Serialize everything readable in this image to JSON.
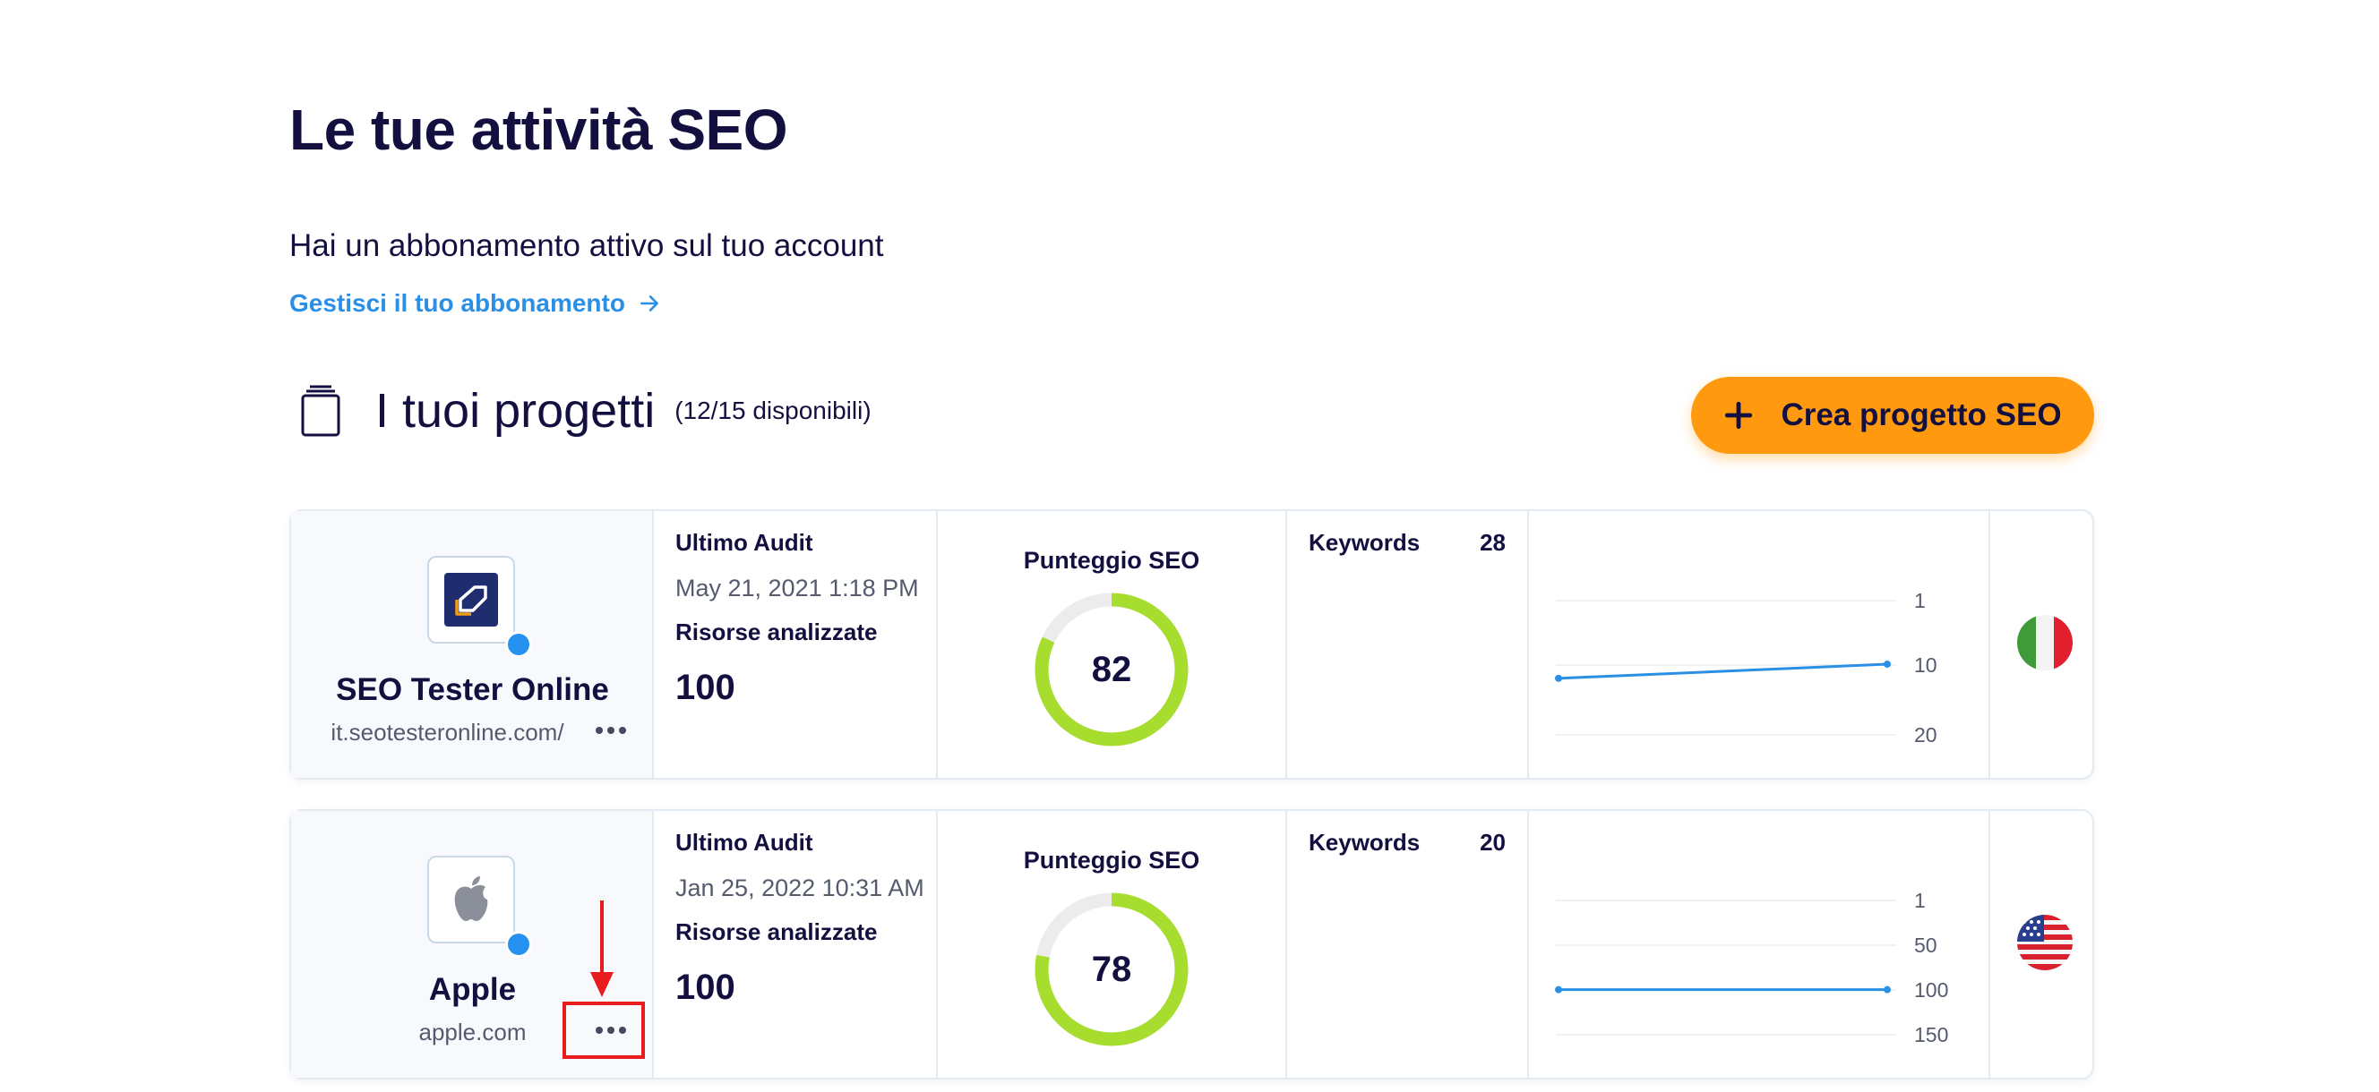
{
  "page": {
    "title": "Le tue attività SEO",
    "subscription_status": "Hai un abbonamento attivo sul tuo account",
    "manage_link": "Gestisci il tuo abbonamento"
  },
  "projects": {
    "title": "I tuoi progetti",
    "count": "(12/15 disponibili)",
    "create_button": "Crea progetto SEO"
  },
  "labels": {
    "last_audit": "Ultimo Audit",
    "resources": "Risorse analizzate",
    "seo_score": "Punteggio SEO",
    "keywords": "Keywords"
  },
  "cards": [
    {
      "name": "SEO Tester Online",
      "url": "it.seotesteronline.com/",
      "last_audit": "May 21, 2021 1:18 PM",
      "resources": "100",
      "score": "82",
      "score_fraction": 0.82,
      "keywords": "28",
      "country": "IT",
      "chart": {
        "type": "line",
        "y_ticks": [
          "1",
          "10",
          "20"
        ],
        "y_range": [
          1,
          20
        ],
        "points": [
          12,
          10
        ]
      }
    },
    {
      "name": "Apple",
      "url": "apple.com",
      "last_audit": "Jan 25, 2022 10:31 AM",
      "resources": "100",
      "score": "78",
      "score_fraction": 0.78,
      "keywords": "20",
      "country": "US",
      "chart": {
        "type": "line",
        "y_ticks": [
          "1",
          "50",
          "100",
          "150"
        ],
        "y_range": [
          1,
          150
        ],
        "points": [
          100,
          100
        ]
      }
    }
  ],
  "colors": {
    "accent": "#ff9a10",
    "link": "#2b8fe6",
    "gauge": "#a6dd2e",
    "gauge_track": "#ececec",
    "chart_line": "#2b8fe6",
    "dot": "#2592f0",
    "highlight": "#e81c1c"
  }
}
